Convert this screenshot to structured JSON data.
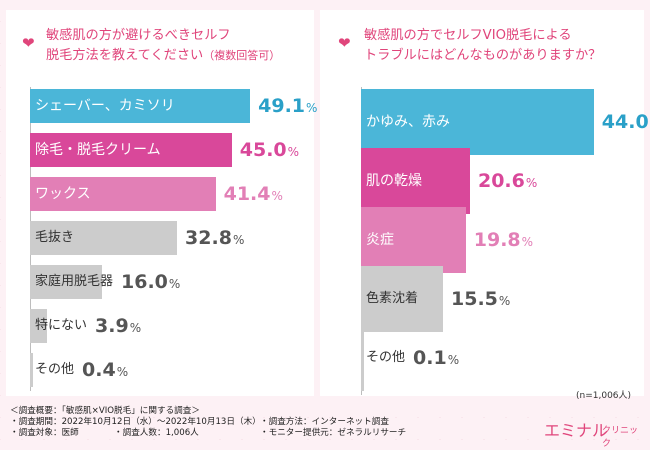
{
  "colors": {
    "title_pink": "#e0457b",
    "val_pink": "#d9489a",
    "val_blue": "#2aa0c8",
    "val_gray": "#555555"
  },
  "chart_data": [
    {
      "type": "bar",
      "orientation": "horizontal",
      "title_line1": "敏感肌の方が避けるべきセルフ",
      "title_line2": "脱毛方法を教えてください",
      "title_note": "（複数回答可）",
      "categories": [
        "シェーバー、カミソリ",
        "除毛・脱毛クリーム",
        "ワックス",
        "毛抜き",
        "家庭用脱毛器",
        "特にない",
        "その他"
      ],
      "values": [
        49.1,
        45.0,
        41.4,
        32.8,
        16.0,
        3.9,
        0.4
      ],
      "value_labels_int": [
        "49.1",
        "45.0",
        "41.4",
        "32.8",
        "16.0",
        "3.9",
        "0.4"
      ],
      "unit": "%",
      "bar_colors": [
        "#4bb6d8",
        "#d9489a",
        "#e27fb6",
        "#cccccc",
        "#cccccc",
        "#cccccc",
        "#cccccc"
      ],
      "value_colors": [
        "#2aa0c8",
        "#d9489a",
        "#e27fb6",
        "#555555",
        "#555555",
        "#555555",
        "#555555"
      ],
      "label_styles": [
        "dark",
        "dark",
        "dark",
        "gray",
        "gray",
        "gray",
        "gray"
      ],
      "xlim": [
        0,
        60
      ]
    },
    {
      "type": "bar",
      "orientation": "horizontal",
      "title_line1": "敏感肌の方でセルフVIO脱毛による",
      "title_line2": "トラブルにはどんなものがありますか？",
      "title_note": "",
      "categories": [
        "かゆみ、赤み",
        "肌の乾燥",
        "炎症",
        "色素沈着",
        "その他"
      ],
      "values": [
        44.0,
        20.6,
        19.8,
        15.5,
        0.1
      ],
      "value_labels_int": [
        "44.0",
        "20.6",
        "19.8",
        "15.5",
        "0.1"
      ],
      "unit": "%",
      "bar_colors": [
        "#4bb6d8",
        "#d9489a",
        "#e27fb6",
        "#cccccc",
        "#cccccc"
      ],
      "value_colors": [
        "#2aa0c8",
        "#d9489a",
        "#e27fb6",
        "#555555",
        "#555555"
      ],
      "label_styles": [
        "dark",
        "dark",
        "dark",
        "gray",
        "gray"
      ],
      "xlim": [
        0,
        55
      ]
    }
  ],
  "n_label": "(n=1,006人)",
  "survey": {
    "heading": "＜調査概要：「敏感肌×VIO脱毛」に関する調査＞",
    "period": "・調査期間：2022年10月12日（水）～2022年10月13日（木）",
    "method": "・調査方法：インターネット調査",
    "target": "・調査対象：医師",
    "count": "・調査人数：1,006人",
    "provider": "・モニター提供元：ゼネラルリサーチ"
  },
  "logo": {
    "main": "エミナル",
    "sub": "クリニック"
  }
}
